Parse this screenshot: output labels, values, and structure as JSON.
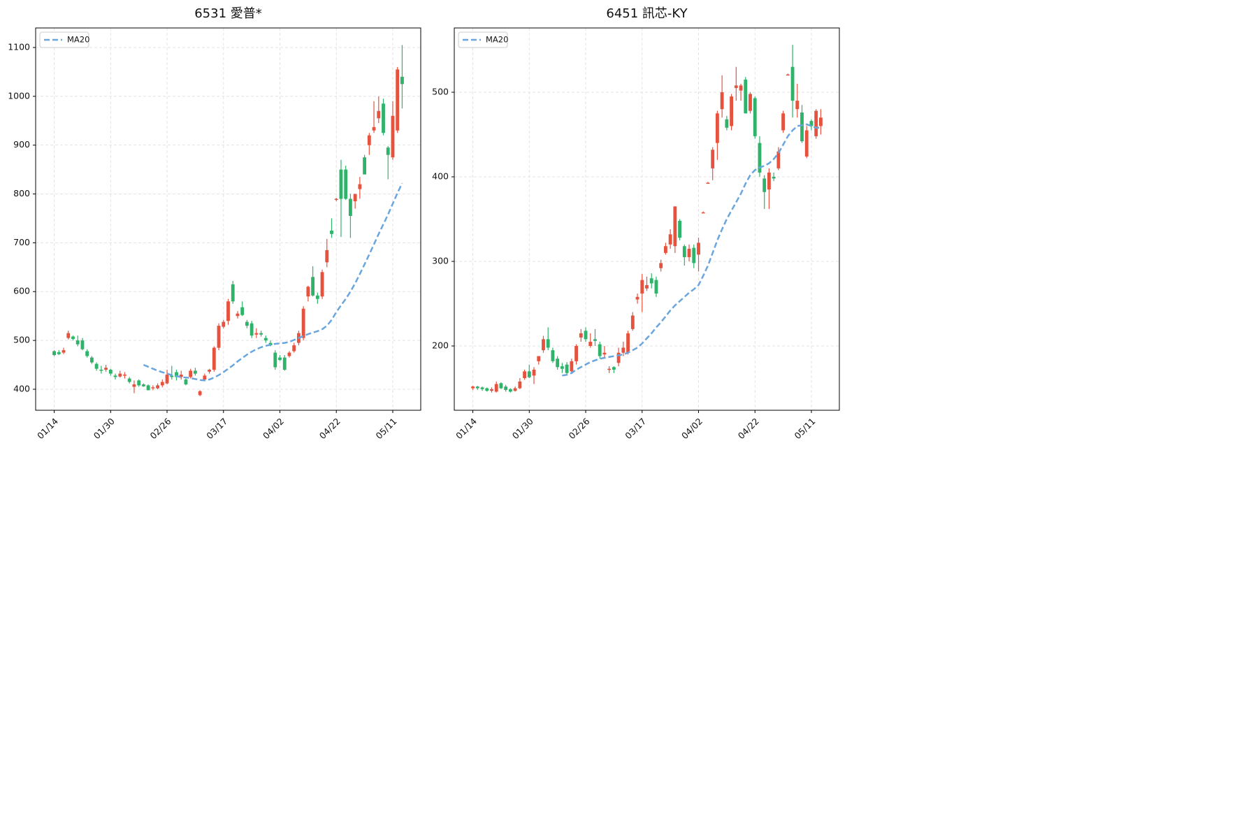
{
  "chart_data": [
    {
      "type": "candlestick",
      "title": "6531 愛普*",
      "up_color": "#e5533f",
      "down_color": "#2fb36a",
      "legend": "upper left",
      "grid": true,
      "categories": [
        "01/14",
        null,
        null,
        null,
        null,
        null,
        null,
        null,
        null,
        null,
        null,
        null,
        "01/30",
        null,
        null,
        null,
        null,
        null,
        null,
        null,
        null,
        null,
        null,
        null,
        "02/26",
        null,
        null,
        null,
        null,
        null,
        null,
        null,
        null,
        null,
        null,
        null,
        "03/17",
        null,
        null,
        null,
        null,
        null,
        null,
        null,
        null,
        null,
        null,
        null,
        "04/02",
        null,
        null,
        null,
        null,
        null,
        null,
        null,
        null,
        null,
        null,
        null,
        "04/22",
        null,
        null,
        null,
        null,
        null,
        null,
        null,
        null,
        null,
        null,
        null,
        "05/11",
        null,
        null
      ],
      "ohlc": [
        [
          478,
          480,
          468,
          470
        ],
        [
          476,
          480,
          470,
          472
        ],
        [
          475,
          485,
          472,
          480
        ],
        [
          505,
          520,
          502,
          515
        ],
        [
          508,
          510,
          500,
          503
        ],
        [
          500,
          510,
          488,
          492
        ],
        [
          500,
          505,
          480,
          482
        ],
        [
          478,
          482,
          465,
          468
        ],
        [
          465,
          468,
          452,
          455
        ],
        [
          452,
          455,
          438,
          442
        ],
        [
          440,
          448,
          432,
          438
        ],
        [
          440,
          450,
          436,
          444
        ],
        [
          440,
          442,
          428,
          432
        ],
        [
          428,
          432,
          420,
          425
        ],
        [
          426,
          438,
          424,
          432
        ],
        [
          428,
          435,
          422,
          430
        ],
        [
          422,
          425,
          412,
          415
        ],
        [
          405,
          418,
          392,
          410
        ],
        [
          418,
          420,
          405,
          408
        ],
        [
          410,
          412,
          405,
          406
        ],
        [
          408,
          410,
          398,
          398
        ],
        [
          402,
          408,
          398,
          404
        ],
        [
          402,
          412,
          400,
          408
        ],
        [
          408,
          420,
          404,
          415
        ],
        [
          412,
          440,
          410,
          430
        ],
        [
          428,
          448,
          420,
          425
        ],
        [
          435,
          440,
          418,
          425
        ],
        [
          425,
          438,
          420,
          430
        ],
        [
          420,
          422,
          408,
          410
        ],
        [
          425,
          442,
          422,
          438
        ],
        [
          438,
          444,
          428,
          432
        ],
        [
          388,
          398,
          386,
          396
        ],
        [
          420,
          432,
          418,
          428
        ],
        [
          436,
          442,
          432,
          440
        ],
        [
          440,
          488,
          436,
          485
        ],
        [
          485,
          535,
          480,
          530
        ],
        [
          528,
          542,
          525,
          538
        ],
        [
          540,
          585,
          532,
          580
        ],
        [
          615,
          622,
          575,
          580
        ],
        [
          550,
          560,
          545,
          555
        ],
        [
          568,
          580,
          550,
          552
        ],
        [
          538,
          542,
          525,
          530
        ],
        [
          535,
          540,
          505,
          510
        ],
        [
          512,
          525,
          505,
          515
        ],
        [
          515,
          520,
          508,
          512
        ],
        [
          505,
          510,
          495,
          500
        ],
        [
          495,
          500,
          488,
          490
        ],
        [
          475,
          480,
          440,
          445
        ],
        [
          465,
          470,
          458,
          460
        ],
        [
          465,
          470,
          438,
          440
        ],
        [
          468,
          478,
          465,
          475
        ],
        [
          478,
          495,
          475,
          490
        ],
        [
          495,
          520,
          490,
          515
        ],
        [
          505,
          570,
          500,
          565
        ],
        [
          590,
          612,
          580,
          610
        ],
        [
          630,
          652,
          590,
          592
        ],
        [
          592,
          598,
          575,
          585
        ],
        [
          590,
          645,
          585,
          640
        ],
        [
          660,
          708,
          650,
          685
        ],
        [
          725,
          750,
          710,
          718
        ],
        [
          788,
          792,
          785,
          790
        ],
        [
          850,
          870,
          712,
          790
        ],
        [
          850,
          858,
          788,
          790
        ],
        [
          790,
          800,
          710,
          755
        ],
        [
          785,
          800,
          770,
          800
        ],
        [
          810,
          835,
          790,
          820
        ],
        [
          875,
          880,
          840,
          840
        ],
        [
          900,
          925,
          880,
          920
        ],
        [
          930,
          990,
          925,
          937
        ],
        [
          955,
          1000,
          945,
          970
        ],
        [
          985,
          995,
          920,
          925
        ],
        [
          895,
          898,
          830,
          880
        ],
        [
          875,
          990,
          870,
          960
        ],
        [
          930,
          1060,
          925,
          1055
        ],
        [
          1040,
          1105,
          975,
          1025
        ]
      ],
      "series": [
        {
          "name": "MA20",
          "color": "#6aa6de",
          "values": [
            null,
            null,
            null,
            null,
            null,
            null,
            null,
            null,
            null,
            null,
            null,
            null,
            null,
            null,
            null,
            null,
            null,
            null,
            null,
            450,
            446,
            442,
            438,
            435,
            432,
            429,
            427,
            425,
            424,
            423,
            421,
            419,
            418,
            420,
            424,
            429,
            435,
            442,
            449,
            457,
            464,
            471,
            477,
            482,
            486,
            489,
            491,
            493,
            494,
            495,
            497,
            501,
            505,
            509,
            513,
            516,
            519,
            523,
            530,
            542,
            558,
            572,
            585,
            600,
            617,
            636,
            656,
            676,
            697,
            718,
            738,
            758,
            780,
            802,
            822
          ]
        }
      ],
      "ylim": [
        357,
        1140
      ],
      "yticks": [
        400,
        500,
        600,
        700,
        800,
        900,
        1000,
        1100
      ]
    },
    {
      "type": "candlestick",
      "title": "6451 訊芯-KY",
      "up_color": "#e5533f",
      "down_color": "#2fb36a",
      "legend": "upper left",
      "grid": true,
      "categories": [
        "01/14",
        null,
        null,
        null,
        null,
        null,
        null,
        null,
        null,
        null,
        null,
        null,
        "01/30",
        null,
        null,
        null,
        null,
        null,
        null,
        null,
        null,
        null,
        null,
        null,
        "02/26",
        null,
        null,
        null,
        null,
        null,
        null,
        null,
        null,
        null,
        null,
        null,
        "03/17",
        null,
        null,
        null,
        null,
        null,
        null,
        null,
        null,
        null,
        null,
        null,
        "04/02",
        null,
        null,
        null,
        null,
        null,
        null,
        null,
        null,
        null,
        null,
        null,
        "04/22",
        null,
        null,
        null,
        null,
        null,
        null,
        null,
        null,
        null,
        null,
        null,
        "05/11",
        null,
        null
      ],
      "ohlc": [
        [
          150,
          153,
          148,
          152
        ],
        [
          152,
          153,
          148,
          150
        ],
        [
          151,
          152,
          147,
          149
        ],
        [
          150,
          151,
          146,
          147
        ],
        [
          147,
          151,
          145,
          149
        ],
        [
          146,
          158,
          145,
          155
        ],
        [
          156,
          157,
          149,
          150
        ],
        [
          152,
          154,
          146,
          148
        ],
        [
          149,
          150,
          145,
          146
        ],
        [
          147,
          152,
          146,
          150
        ],
        [
          150,
          162,
          149,
          158
        ],
        [
          162,
          172,
          160,
          170
        ],
        [
          170,
          178,
          162,
          163
        ],
        [
          165,
          175,
          155,
          172
        ],
        [
          182,
          188,
          178,
          188
        ],
        [
          195,
          212,
          192,
          208
        ],
        [
          208,
          222,
          195,
          198
        ],
        [
          195,
          198,
          180,
          182
        ],
        [
          185,
          188,
          172,
          175
        ],
        [
          176,
          180,
          168,
          173
        ],
        [
          178,
          181,
          165,
          168
        ],
        [
          170,
          185,
          168,
          182
        ],
        [
          182,
          202,
          178,
          200
        ],
        [
          210,
          220,
          205,
          215
        ],
        [
          218,
          222,
          205,
          208
        ],
        [
          200,
          215,
          198,
          205
        ],
        [
          208,
          220,
          200,
          206
        ],
        [
          202,
          205,
          185,
          188
        ],
        [
          190,
          200,
          186,
          192
        ],
        [
          172,
          176,
          168,
          173
        ],
        [
          175,
          176,
          168,
          172
        ],
        [
          180,
          198,
          176,
          192
        ],
        [
          192,
          205,
          188,
          198
        ],
        [
          192,
          218,
          190,
          215
        ],
        [
          220,
          240,
          218,
          236
        ],
        [
          255,
          262,
          250,
          258
        ],
        [
          262,
          285,
          240,
          278
        ],
        [
          268,
          282,
          265,
          272
        ],
        [
          280,
          286,
          268,
          274
        ],
        [
          278,
          282,
          258,
          262
        ],
        [
          292,
          302,
          288,
          298
        ],
        [
          310,
          322,
          308,
          318
        ],
        [
          320,
          338,
          315,
          332
        ],
        [
          318,
          365,
          310,
          365
        ],
        [
          348,
          350,
          325,
          328
        ],
        [
          318,
          320,
          295,
          305
        ],
        [
          305,
          320,
          300,
          315
        ],
        [
          316,
          320,
          292,
          298
        ],
        [
          308,
          328,
          288,
          322
        ],
        [
          358,
          359,
          357,
          358
        ],
        [
          393,
          394,
          392,
          393
        ],
        [
          410,
          435,
          396,
          432
        ],
        [
          440,
          478,
          420,
          475
        ],
        [
          480,
          520,
          470,
          500
        ],
        [
          468,
          472,
          455,
          458
        ],
        [
          460,
          498,
          455,
          495
        ],
        [
          505,
          530,
          490,
          508
        ],
        [
          502,
          510,
          490,
          508
        ],
        [
          515,
          518,
          475,
          475
        ],
        [
          478,
          500,
          475,
          498
        ],
        [
          493,
          495,
          445,
          448
        ],
        [
          440,
          448,
          400,
          405
        ],
        [
          398,
          402,
          362,
          382
        ],
        [
          385,
          410,
          362,
          405
        ],
        [
          400,
          405,
          395,
          398
        ],
        [
          410,
          435,
          408,
          430
        ],
        [
          455,
          478,
          452,
          475
        ],
        [
          520,
          522,
          520,
          521
        ],
        [
          530,
          556,
          470,
          490
        ],
        [
          480,
          510,
          470,
          490
        ],
        [
          476,
          485,
          440,
          442
        ],
        [
          424,
          460,
          422,
          455
        ],
        [
          466,
          468,
          455,
          460
        ],
        [
          448,
          480,
          445,
          478
        ],
        [
          460,
          480,
          450,
          470
        ]
      ],
      "series": [
        {
          "name": "MA20",
          "color": "#6aa6de",
          "values": [
            null,
            null,
            null,
            null,
            null,
            null,
            null,
            null,
            null,
            null,
            null,
            null,
            null,
            null,
            null,
            null,
            null,
            null,
            null,
            165,
            166,
            168,
            172,
            175,
            178,
            181,
            183,
            185,
            186,
            187,
            188,
            189,
            190,
            192,
            195,
            198,
            203,
            209,
            215,
            222,
            228,
            235,
            242,
            248,
            253,
            258,
            263,
            267,
            272,
            283,
            295,
            310,
            325,
            338,
            350,
            360,
            370,
            380,
            392,
            402,
            408,
            411,
            413,
            416,
            421,
            428,
            438,
            448,
            455,
            460,
            461,
            462,
            460,
            458,
            458
          ]
        }
      ],
      "ylim": [
        124,
        576
      ],
      "yticks": [
        200,
        300,
        400,
        500
      ]
    }
  ]
}
